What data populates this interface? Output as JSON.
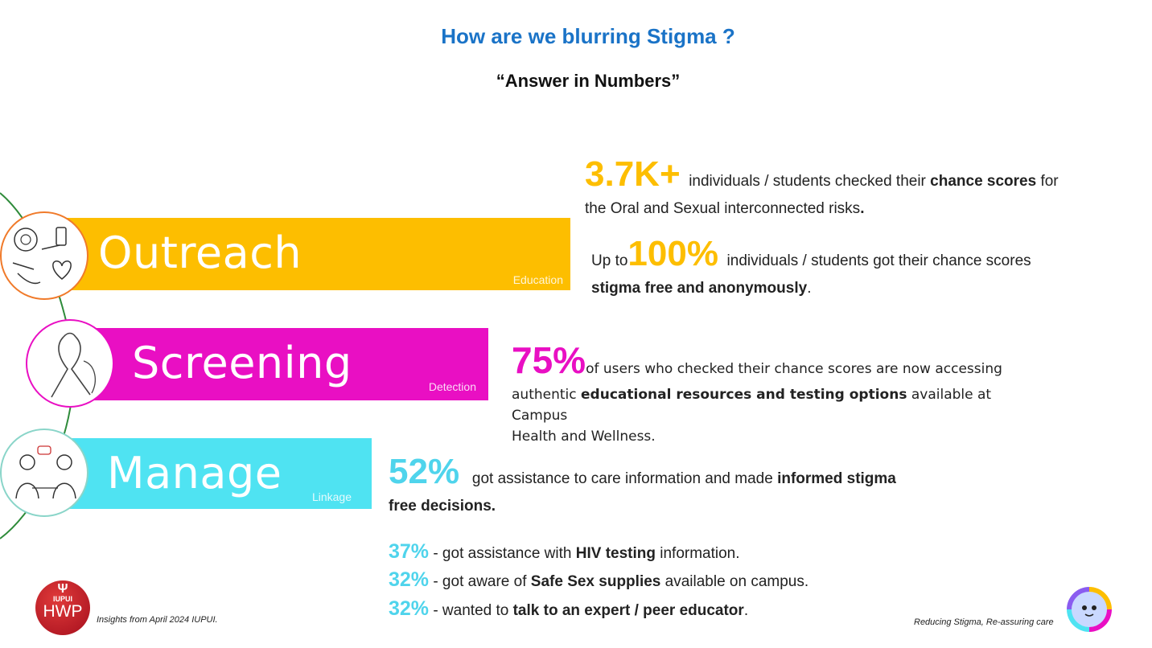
{
  "header": {
    "title": "How are we blurring Stigma ?",
    "subtitle": "“Answer in Numbers”"
  },
  "colors": {
    "title": "#1a73c7",
    "outreach": "#fdbe00",
    "screening": "#e90fc3",
    "manage": "#4fe3f2",
    "stat_pct": "#4fd4ec"
  },
  "bands": [
    {
      "label": "Outreach",
      "sub": "Education",
      "icon": "vaccine-heart-icon"
    },
    {
      "label": "Screening",
      "sub": "Detection",
      "icon": "awareness-ribbon-icon"
    },
    {
      "label": "Manage",
      "sub": "Linkage",
      "icon": "consultation-icon"
    }
  ],
  "outreach_stats": {
    "s1_big": "3.7K+",
    "s1_a": "individuals / students checked their ",
    "s1_b": "chance scores",
    "s1_c": " for",
    "s1_d": "the Oral and Sexual interconnected risks",
    "s1_e": ".",
    "s2_pre": "Up to",
    "s2_big": "100%",
    "s2_a": "individuals / students got their chance scores",
    "s2_b": "stigma free and anonymously",
    "s2_c": "."
  },
  "screening_stats": {
    "big": "75%",
    "a": "of users who checked their chance scores are now accessing",
    "b": "authentic ",
    "c": "educational resources and testing options",
    "d": " available at Campus",
    "e": "Health and Wellness."
  },
  "manage_stats": {
    "big": "52%",
    "a": "got assistance to care information and made ",
    "b": "informed stigma",
    "c": "free decisions."
  },
  "sub_stats": [
    {
      "pct": "37%",
      "pre": "- got assistance with ",
      "bold": "HIV testing",
      "post": " information."
    },
    {
      "pct": "32%",
      "pre": "- got aware of ",
      "bold": "Safe Sex supplies",
      "post": " available on campus."
    },
    {
      "pct": "32%",
      "pre": "- wanted to ",
      "bold": "talk to an expert / peer educator",
      "post": "."
    }
  ],
  "footer": {
    "logo_top": "IUPUI",
    "logo_bottom": "HWP",
    "insights": "Insights from April 2024 IUPUI.",
    "tagline": "Reducing Stigma, Re-assuring care",
    "mascot_icon": "smiling-mascot-icon"
  }
}
